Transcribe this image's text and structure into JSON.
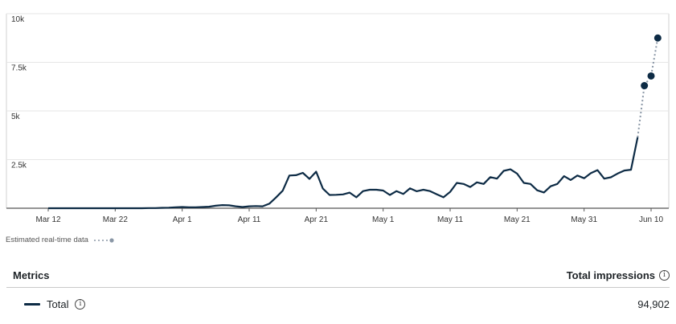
{
  "chart_data": {
    "type": "line",
    "title": "",
    "xlabel": "",
    "ylabel": "",
    "ylim": [
      0,
      10000
    ],
    "y_ticks": [
      "10k",
      "7.5k",
      "5k",
      "2.5k"
    ],
    "y_tick_values": [
      10000,
      7500,
      5000,
      2500
    ],
    "x_tick_labels": [
      "Mar 12",
      "Mar 22",
      "Apr 1",
      "Apr 11",
      "Apr 21",
      "May 1",
      "May 11",
      "May 21",
      "May 31",
      "Jun 10"
    ],
    "x_tick_dates": [
      "2024-03-12",
      "2024-03-22",
      "2024-04-01",
      "2024-04-11",
      "2024-04-21",
      "2024-05-01",
      "2024-05-11",
      "2024-05-21",
      "2024-05-31",
      "2024-06-10"
    ],
    "xlim": [
      "2024-03-12",
      "2024-06-10"
    ],
    "grid": true,
    "series": [
      {
        "name": "Total",
        "color": "#0d2b45",
        "points": [
          [
            "2024-03-12",
            0
          ],
          [
            "2024-03-13",
            0
          ],
          [
            "2024-03-14",
            0
          ],
          [
            "2024-03-15",
            0
          ],
          [
            "2024-03-16",
            0
          ],
          [
            "2024-03-17",
            0
          ],
          [
            "2024-03-18",
            0
          ],
          [
            "2024-03-19",
            0
          ],
          [
            "2024-03-20",
            0
          ],
          [
            "2024-03-21",
            0
          ],
          [
            "2024-03-22",
            0
          ],
          [
            "2024-03-23",
            0
          ],
          [
            "2024-03-24",
            0
          ],
          [
            "2024-03-25",
            0
          ],
          [
            "2024-03-26",
            0
          ],
          [
            "2024-03-27",
            10
          ],
          [
            "2024-03-28",
            10
          ],
          [
            "2024-03-29",
            20
          ],
          [
            "2024-03-30",
            30
          ],
          [
            "2024-03-31",
            50
          ],
          [
            "2024-04-01",
            60
          ],
          [
            "2024-04-02",
            50
          ],
          [
            "2024-04-03",
            50
          ],
          [
            "2024-04-04",
            60
          ],
          [
            "2024-04-05",
            80
          ],
          [
            "2024-04-06",
            130
          ],
          [
            "2024-04-07",
            160
          ],
          [
            "2024-04-08",
            150
          ],
          [
            "2024-04-09",
            100
          ],
          [
            "2024-04-10",
            60
          ],
          [
            "2024-04-11",
            100
          ],
          [
            "2024-04-12",
            110
          ],
          [
            "2024-04-13",
            100
          ],
          [
            "2024-04-14",
            230
          ],
          [
            "2024-04-15",
            550
          ],
          [
            "2024-04-16",
            900
          ],
          [
            "2024-04-17",
            1680
          ],
          [
            "2024-04-18",
            1700
          ],
          [
            "2024-04-19",
            1820
          ],
          [
            "2024-04-20",
            1510
          ],
          [
            "2024-04-21",
            1880
          ],
          [
            "2024-04-22",
            1010
          ],
          [
            "2024-04-23",
            680
          ],
          [
            "2024-04-24",
            690
          ],
          [
            "2024-04-25",
            710
          ],
          [
            "2024-04-26",
            800
          ],
          [
            "2024-04-27",
            560
          ],
          [
            "2024-04-28",
            880
          ],
          [
            "2024-04-29",
            950
          ],
          [
            "2024-04-30",
            950
          ],
          [
            "2024-05-01",
            910
          ],
          [
            "2024-05-02",
            680
          ],
          [
            "2024-05-03",
            880
          ],
          [
            "2024-05-04",
            730
          ],
          [
            "2024-05-05",
            1020
          ],
          [
            "2024-05-06",
            870
          ],
          [
            "2024-05-07",
            950
          ],
          [
            "2024-05-08",
            880
          ],
          [
            "2024-05-09",
            720
          ],
          [
            "2024-05-10",
            560
          ],
          [
            "2024-05-11",
            840
          ],
          [
            "2024-05-12",
            1300
          ],
          [
            "2024-05-13",
            1250
          ],
          [
            "2024-05-14",
            1090
          ],
          [
            "2024-05-15",
            1330
          ],
          [
            "2024-05-16",
            1250
          ],
          [
            "2024-05-17",
            1600
          ],
          [
            "2024-05-18",
            1520
          ],
          [
            "2024-05-19",
            1920
          ],
          [
            "2024-05-20",
            2000
          ],
          [
            "2024-05-21",
            1780
          ],
          [
            "2024-05-22",
            1300
          ],
          [
            "2024-05-23",
            1250
          ],
          [
            "2024-05-24",
            920
          ],
          [
            "2024-05-25",
            810
          ],
          [
            "2024-05-26",
            1130
          ],
          [
            "2024-05-27",
            1250
          ],
          [
            "2024-05-28",
            1650
          ],
          [
            "2024-05-29",
            1450
          ],
          [
            "2024-05-30",
            1680
          ],
          [
            "2024-05-31",
            1540
          ],
          [
            "2024-06-01",
            1800
          ],
          [
            "2024-06-02",
            1960
          ],
          [
            "2024-06-03",
            1520
          ],
          [
            "2024-06-04",
            1590
          ],
          [
            "2024-06-05",
            1780
          ],
          [
            "2024-06-06",
            1940
          ],
          [
            "2024-06-07",
            1980
          ],
          [
            "2024-06-08",
            3650
          ]
        ]
      }
    ],
    "estimated_points": [
      [
        "2024-06-08",
        3650
      ],
      [
        "2024-06-09",
        6300
      ],
      [
        "2024-06-10",
        6800
      ],
      [
        "2024-06-11",
        8750
      ]
    ],
    "estimated_color": "#8a97a6"
  },
  "legend_note": {
    "label": "Estimated real-time data"
  },
  "metrics": {
    "header_left": "Metrics",
    "header_right": "Total impressions",
    "info_glyph": "i",
    "rows": [
      {
        "label": "Total",
        "value": "94,902",
        "color": "#0d2b45"
      }
    ]
  }
}
